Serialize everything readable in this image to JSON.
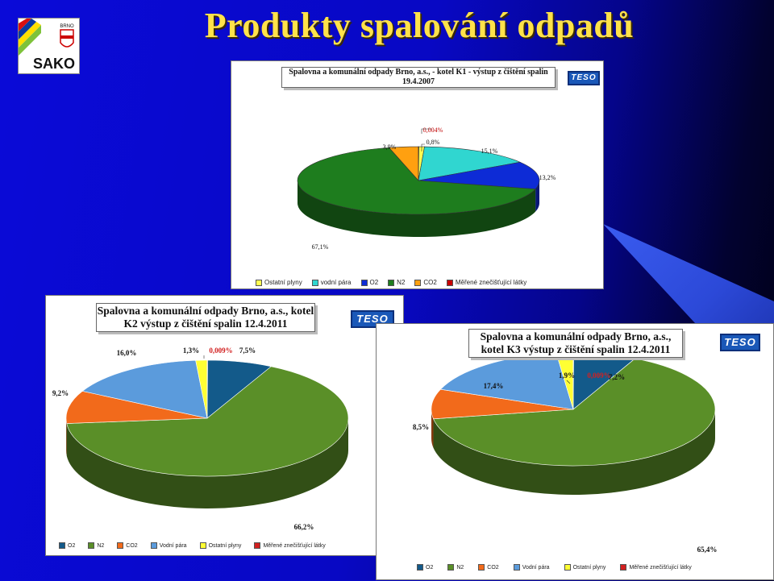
{
  "slide": {
    "title": "Produkty spalování odpadů",
    "logo_text": "SAKO",
    "logo_small": "BRNO"
  },
  "teso_label": "TESO",
  "colors": {
    "o2": "#0d2bd6",
    "n2": "#1e7d1e",
    "co2": "#ffa010",
    "vodni_para": "#30d6d0",
    "ostatni": "#ffff50",
    "merene": "#c80000"
  },
  "chart_data": [
    {
      "type": "pie",
      "title": "Spalovna a komunální odpady Brno, a.s., - kotel K1 - výstup z čištění spalin 19.4.2007",
      "slices": [
        {
          "name": "Ostatní plyny",
          "value": 0.8,
          "label": "0,8%",
          "color": "#ffff50"
        },
        {
          "name": "vodní pára",
          "value": 15.1,
          "label": "15,1%",
          "color": "#30d6d0"
        },
        {
          "name": "O2",
          "value": 13.2,
          "label": "13,2%",
          "color": "#0d2bd6"
        },
        {
          "name": "N2",
          "value": 67.1,
          "label": "67,1%",
          "color": "#1e7d1e"
        },
        {
          "name": "CO2",
          "value": 3.9,
          "label": "3,9%",
          "color": "#ffa010"
        },
        {
          "name": "Měřené znečišťující látky",
          "value": 0.004,
          "label": "0,004%",
          "color": "#c80000"
        }
      ],
      "legend": [
        "Ostatní plyny",
        "vodní pára",
        "O2",
        "N2",
        "CO2",
        "Měřené znečišťující látky"
      ],
      "legend_colors": [
        "#ffff50",
        "#30d6d0",
        "#0d2bd6",
        "#1e7d1e",
        "#ffa010",
        "#c80000"
      ]
    },
    {
      "type": "pie",
      "title": "Spalovna a komunální odpady Brno, a.s., kotel K2 výstup z čištění spalin 12.4.2011",
      "slices": [
        {
          "name": "O2",
          "value": 7.5,
          "label": "7,5%",
          "color": "#135a8a"
        },
        {
          "name": "N2",
          "value": 66.2,
          "label": "66,2%",
          "color": "#5a8f28"
        },
        {
          "name": "CO2",
          "value": 9.2,
          "label": "9,2%",
          "color": "#f26a1b"
        },
        {
          "name": "Vodní pára",
          "value": 16.0,
          "label": "16,0%",
          "color": "#5b9bdc"
        },
        {
          "name": "Ostatní plyny",
          "value": 1.3,
          "label": "1,3%",
          "color": "#ffff33"
        },
        {
          "name": "Měřené znečišťující látky",
          "value": 0.009,
          "label": "0,009%",
          "color": "#d22020"
        }
      ],
      "legend": [
        "O2",
        "N2",
        "CO2",
        "Vodní pára",
        "Ostatní plyny",
        "Měřené znečišťující látky"
      ],
      "legend_colors": [
        "#135a8a",
        "#5a8f28",
        "#f26a1b",
        "#5b9bdc",
        "#ffff33",
        "#d22020"
      ]
    },
    {
      "type": "pie",
      "title": "Spalovna a komunální odpady Brno, a.s., kotel K3 výstup z čištění spalin 12.4.2011",
      "slices": [
        {
          "name": "O2",
          "value": 7.2,
          "label": "7,2%",
          "color": "#135a8a"
        },
        {
          "name": "N2",
          "value": 65.4,
          "label": "65,4%",
          "color": "#5a8f28"
        },
        {
          "name": "CO2",
          "value": 8.5,
          "label": "8,5%",
          "color": "#f26a1b"
        },
        {
          "name": "Vodní pára",
          "value": 17.4,
          "label": "17,4%",
          "color": "#5b9bdc"
        },
        {
          "name": "Ostatní plyny",
          "value": 1.9,
          "label": "1,9%",
          "color": "#ffff33"
        },
        {
          "name": "Měřené znečišťující látky",
          "value": 0.009,
          "label": "0,009%",
          "color": "#d22020"
        }
      ],
      "legend": [
        "O2",
        "N2",
        "CO2",
        "Vodní pára",
        "Ostatní plyny",
        "Měřené znečišťující látky"
      ],
      "legend_colors": [
        "#135a8a",
        "#5a8f28",
        "#f26a1b",
        "#5b9bdc",
        "#ffff33",
        "#d22020"
      ]
    }
  ]
}
